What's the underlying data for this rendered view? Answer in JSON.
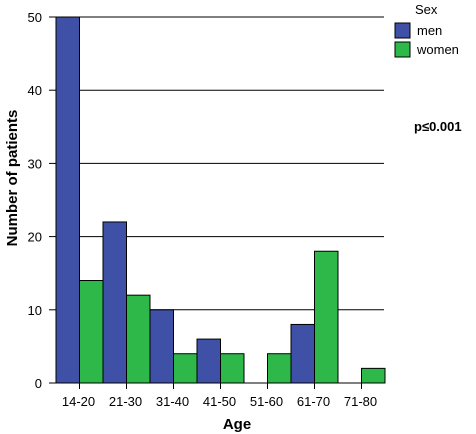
{
  "chart_data": {
    "type": "bar",
    "xlabel": "Age",
    "ylabel": "Number of patients",
    "ylim": [
      0,
      50
    ],
    "yticks": [
      "0",
      "10",
      "20",
      "30",
      "40",
      "50"
    ],
    "categories": [
      "14-20",
      "21-30",
      "31-40",
      "41-50",
      "51-60",
      "61-70",
      "71-80"
    ],
    "legend_title": "Sex",
    "legend_position": "top-right",
    "grid": "horizontal",
    "series": [
      {
        "name": "men",
        "color": "#3f51a6",
        "values": [
          50,
          22,
          10,
          6,
          0,
          8,
          0
        ]
      },
      {
        "name": "women",
        "color": "#2eb84a",
        "values": [
          14,
          12,
          4,
          4,
          4,
          18,
          2
        ]
      }
    ],
    "annotation": "p≤0.001"
  }
}
